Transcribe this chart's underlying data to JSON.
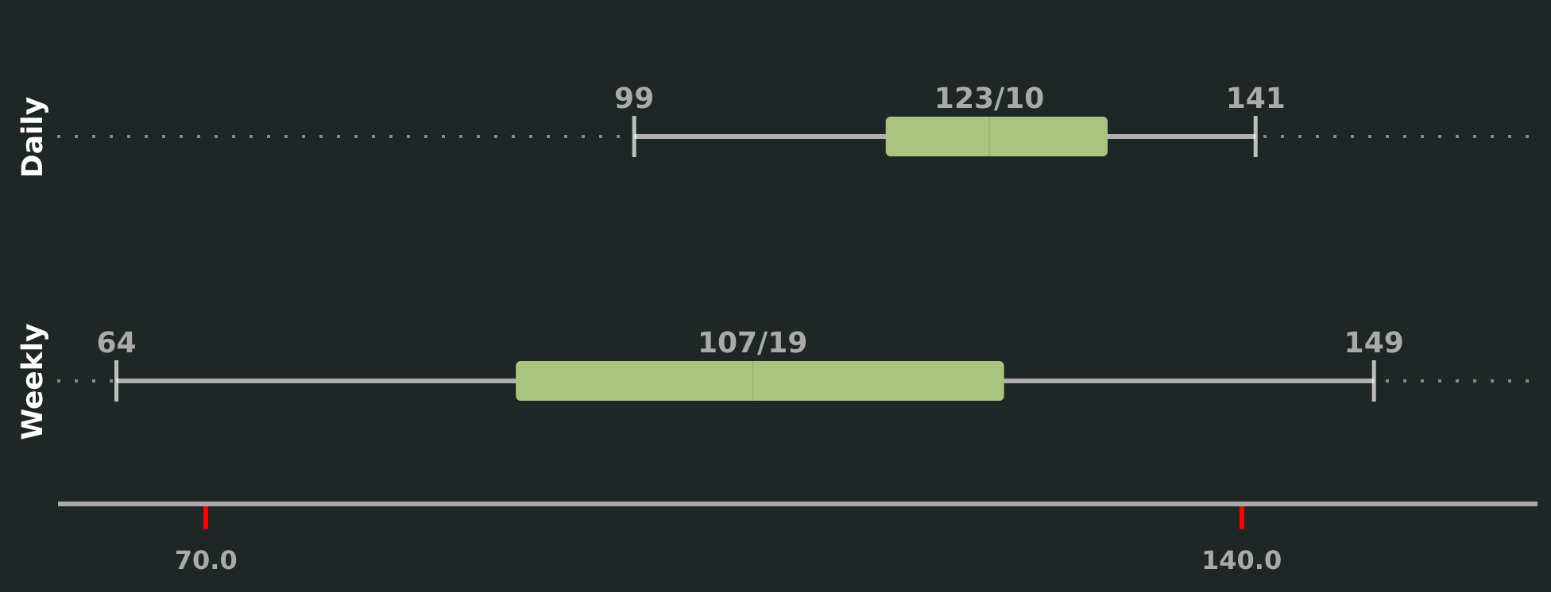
{
  "chart_data": {
    "type": "box",
    "orientation": "horizontal",
    "categories": [
      "Daily",
      "Weekly"
    ],
    "boxes": [
      {
        "low": 99,
        "q1": 116,
        "median": 123,
        "q3": 131,
        "high": 141
      },
      {
        "low": 64,
        "q1": 91,
        "median": 107,
        "q3": 124,
        "high": 149
      }
    ],
    "color": "#a9c47f",
    "xlim": [
      60,
      160
    ],
    "xticks": [
      {
        "value": 70,
        "label": "70.0"
      },
      {
        "value": 140,
        "label": "140.0"
      }
    ],
    "grid": "y",
    "line_style": "dotted",
    "annotations": [
      {
        "text": "99",
        "x": 99,
        "y": "Daily"
      },
      {
        "text": "123/10",
        "x": 123,
        "y": "Daily"
      },
      {
        "text": "141",
        "x": 141,
        "y": "Daily"
      },
      {
        "text": "64",
        "x": 64,
        "y": "Weekly"
      },
      {
        "text": "107/19",
        "x": 107,
        "y": "Weekly"
      },
      {
        "text": "149",
        "x": 149,
        "y": "Weekly"
      }
    ]
  }
}
